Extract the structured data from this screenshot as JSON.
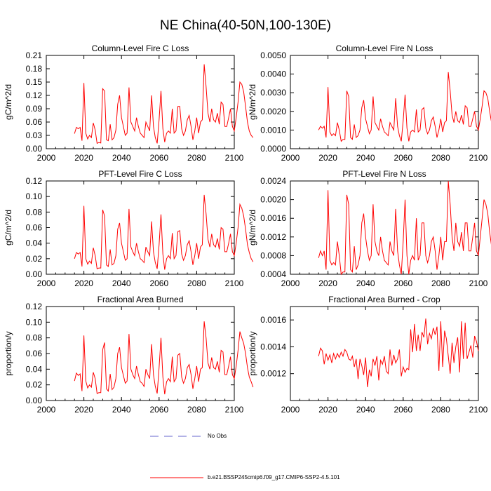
{
  "title": "NE China(40-50N,100-130E)",
  "colors": {
    "series": "#ff0000",
    "obs": "#6666cc",
    "axis": "#000000"
  },
  "legend": {
    "entries": [
      {
        "label": "No Obs",
        "style": "dashed",
        "color": "#6666cc"
      },
      {
        "label": "b.e21.BSSP245cmip6.f09_g17.CMIP6-SSP2-4.5.101",
        "style": "solid",
        "color": "#ff0000"
      }
    ]
  },
  "chart_data": [
    {
      "type": "line",
      "title": "Column-Level Fire C Loss",
      "ylabel": "gC/m^2/d",
      "xlim": [
        2000,
        2100
      ],
      "ylim": [
        0,
        0.21
      ],
      "xticks": [
        "2000",
        "2020",
        "2040",
        "2060",
        "2080",
        "2100"
      ],
      "yticks": [
        "0.00",
        "0.03",
        "0.06",
        "0.09",
        "0.12",
        "0.15",
        "0.18",
        "0.21"
      ],
      "x_start": 2015,
      "values": [
        0.034,
        0.048,
        0.045,
        0.048,
        0.018,
        0.148,
        0.035,
        0.022,
        0.03,
        0.025,
        0.058,
        0.042,
        0.012,
        0.014,
        0.013,
        0.135,
        0.13,
        0.02,
        0.018,
        0.055,
        0.02,
        0.025,
        0.042,
        0.1,
        0.12,
        0.07,
        0.05,
        0.03,
        0.035,
        0.138,
        0.06,
        0.05,
        0.04,
        0.07,
        0.05,
        0.035,
        0.03,
        0.025,
        0.06,
        0.05,
        0.04,
        0.12,
        0.05,
        0.025,
        0.012,
        0.065,
        0.13,
        0.045,
        0.015,
        0.035,
        0.04,
        0.035,
        0.09,
        0.035,
        0.04,
        0.095,
        0.095,
        0.045,
        0.03,
        0.04,
        0.065,
        0.075,
        0.05,
        0.02,
        0.04,
        0.07,
        0.035,
        0.06,
        0.065,
        0.19,
        0.14,
        0.08,
        0.06,
        0.09,
        0.065,
        0.06,
        0.08,
        0.055,
        0.105,
        0.1,
        0.05,
        0.05,
        0.07,
        0.09,
        0.05,
        0.04,
        0.07,
        0.105,
        0.15,
        0.145,
        0.128,
        0.095,
        0.06,
        0.04,
        0.03,
        0.025
      ]
    },
    {
      "type": "line",
      "title": "Column-Level Fire N Loss",
      "ylabel": "gN/m^2/d",
      "xlim": [
        2000,
        2100
      ],
      "ylim": [
        0,
        0.005
      ],
      "xticks": [
        "2000",
        "2020",
        "2040",
        "2060",
        "2080",
        "2100"
      ],
      "yticks": [
        "0.0000",
        "0.0010",
        "0.0020",
        "0.0030",
        "0.0040",
        "0.0050"
      ],
      "x_start": 2015,
      "values": [
        0.001,
        0.0012,
        0.0011,
        0.0012,
        0.0006,
        0.0033,
        0.0009,
        0.0007,
        0.0008,
        0.0007,
        0.0014,
        0.001,
        0.0004,
        0.0005,
        0.0005,
        0.0031,
        0.0028,
        0.0006,
        0.0005,
        0.0013,
        0.0006,
        0.0007,
        0.001,
        0.0022,
        0.0026,
        0.0016,
        0.0012,
        0.0008,
        0.001,
        0.0028,
        0.0014,
        0.0012,
        0.001,
        0.0016,
        0.0012,
        0.0009,
        0.0008,
        0.0007,
        0.0014,
        0.0012,
        0.001,
        0.0027,
        0.0012,
        0.0007,
        0.0004,
        0.0015,
        0.0029,
        0.0011,
        0.0004,
        0.0009,
        0.001,
        0.0009,
        0.0021,
        0.0009,
        0.001,
        0.0021,
        0.0022,
        0.0011,
        0.0008,
        0.001,
        0.0015,
        0.0017,
        0.0012,
        0.0006,
        0.001,
        0.0016,
        0.0009,
        0.0014,
        0.0015,
        0.0041,
        0.0031,
        0.0018,
        0.0014,
        0.002,
        0.0015,
        0.0014,
        0.0018,
        0.0013,
        0.0023,
        0.0022,
        0.0012,
        0.0012,
        0.0016,
        0.002,
        0.0012,
        0.001,
        0.0016,
        0.0023,
        0.0031,
        0.003,
        0.0027,
        0.002,
        0.0014,
        0.0015,
        0.0012,
        0.0008
      ]
    },
    {
      "type": "line",
      "title": "PFT-Level Fire C Loss",
      "ylabel": "gC/m^2/d",
      "xlim": [
        2000,
        2100
      ],
      "ylim": [
        0,
        0.12
      ],
      "xticks": [
        "2000",
        "2020",
        "2040",
        "2060",
        "2080",
        "2100"
      ],
      "yticks": [
        "0.00",
        "0.02",
        "0.04",
        "0.06",
        "0.08",
        "0.10",
        "0.12"
      ],
      "x_start": 2015,
      "values": [
        0.02,
        0.028,
        0.026,
        0.028,
        0.01,
        0.088,
        0.02,
        0.013,
        0.017,
        0.014,
        0.034,
        0.024,
        0.007,
        0.008,
        0.008,
        0.083,
        0.075,
        0.012,
        0.01,
        0.032,
        0.012,
        0.014,
        0.024,
        0.058,
        0.066,
        0.04,
        0.029,
        0.018,
        0.02,
        0.084,
        0.035,
        0.029,
        0.024,
        0.04,
        0.029,
        0.02,
        0.018,
        0.015,
        0.035,
        0.029,
        0.024,
        0.068,
        0.029,
        0.015,
        0.007,
        0.038,
        0.077,
        0.026,
        0.006,
        0.02,
        0.024,
        0.02,
        0.053,
        0.02,
        0.024,
        0.055,
        0.056,
        0.026,
        0.018,
        0.024,
        0.038,
        0.043,
        0.029,
        0.012,
        0.024,
        0.04,
        0.02,
        0.035,
        0.038,
        0.102,
        0.078,
        0.045,
        0.035,
        0.052,
        0.038,
        0.035,
        0.046,
        0.032,
        0.06,
        0.058,
        0.029,
        0.029,
        0.04,
        0.052,
        0.029,
        0.024,
        0.04,
        0.06,
        0.09,
        0.085,
        0.075,
        0.058,
        0.038,
        0.028,
        0.02,
        0.016
      ]
    },
    {
      "type": "line",
      "title": "PFT-Level Fire N Loss",
      "ylabel": "gN/m^2/d",
      "xlim": [
        2000,
        2100
      ],
      "ylim": [
        0.0004,
        0.0024
      ],
      "xticks": [
        "2000",
        "2020",
        "2040",
        "2060",
        "2080",
        "2100"
      ],
      "yticks": [
        "0.0004",
        "0.0008",
        "0.0012",
        "0.0016",
        "0.0020",
        "0.0024"
      ],
      "x_start": 2015,
      "values": [
        0.00075,
        0.0009,
        0.0008,
        0.0009,
        0.0005,
        0.0022,
        0.0007,
        0.0006,
        0.00065,
        0.0006,
        0.0011,
        0.0008,
        0.0004,
        0.00045,
        0.00045,
        0.0021,
        0.0019,
        0.0005,
        0.00045,
        0.001,
        0.0005,
        0.0006,
        0.0008,
        0.0015,
        0.0017,
        0.0012,
        0.0009,
        0.0007,
        0.0008,
        0.0019,
        0.0011,
        0.0009,
        0.0008,
        0.0012,
        0.0009,
        0.0007,
        0.00065,
        0.0006,
        0.0011,
        0.0009,
        0.0008,
        0.0018,
        0.0009,
        0.0006,
        0.0004,
        0.0011,
        0.002,
        0.0008,
        0.0004,
        0.0007,
        0.0008,
        0.0007,
        0.0016,
        0.0007,
        0.0008,
        0.0015,
        0.0015,
        0.0008,
        0.00065,
        0.0008,
        0.0011,
        0.0012,
        0.0009,
        0.0005,
        0.0008,
        0.0012,
        0.0007,
        0.0011,
        0.0011,
        0.0024,
        0.0019,
        0.0012,
        0.0009,
        0.0015,
        0.0011,
        0.001,
        0.0013,
        0.0009,
        0.0015,
        0.0015,
        0.0009,
        0.0009,
        0.0012,
        0.0015,
        0.0009,
        0.0008,
        0.0012,
        0.0016,
        0.002,
        0.0019,
        0.0017,
        0.0013,
        0.001,
        0.0012,
        0.0009,
        0.0006
      ]
    },
    {
      "type": "line",
      "title": "Fractional Area Burned",
      "ylabel": "proportion/y",
      "xlim": [
        2000,
        2100
      ],
      "ylim": [
        0,
        0.12
      ],
      "xticks": [
        "2000",
        "2020",
        "2040",
        "2060",
        "2080",
        "2100"
      ],
      "yticks": [
        "0.00",
        "0.02",
        "0.04",
        "0.06",
        "0.08",
        "0.10",
        "0.12"
      ],
      "x_start": 2015,
      "values": [
        0.025,
        0.035,
        0.032,
        0.034,
        0.012,
        0.083,
        0.025,
        0.016,
        0.02,
        0.017,
        0.036,
        0.028,
        0.009,
        0.01,
        0.01,
        0.065,
        0.074,
        0.015,
        0.012,
        0.034,
        0.014,
        0.017,
        0.028,
        0.06,
        0.068,
        0.042,
        0.032,
        0.022,
        0.025,
        0.085,
        0.04,
        0.033,
        0.028,
        0.044,
        0.033,
        0.024,
        0.022,
        0.018,
        0.04,
        0.033,
        0.028,
        0.072,
        0.033,
        0.018,
        0.009,
        0.042,
        0.08,
        0.03,
        0.008,
        0.024,
        0.028,
        0.024,
        0.056,
        0.024,
        0.028,
        0.058,
        0.06,
        0.03,
        0.022,
        0.028,
        0.042,
        0.046,
        0.033,
        0.015,
        0.028,
        0.044,
        0.024,
        0.04,
        0.042,
        0.101,
        0.08,
        0.048,
        0.04,
        0.055,
        0.042,
        0.04,
        0.05,
        0.036,
        0.064,
        0.062,
        0.033,
        0.033,
        0.044,
        0.056,
        0.033,
        0.028,
        0.044,
        0.064,
        0.088,
        0.08,
        0.073,
        0.06,
        0.042,
        0.03,
        0.024,
        0.017
      ]
    },
    {
      "type": "line",
      "title": "Fractional Area Burned - Crop",
      "ylabel": "proportion/y",
      "xlim": [
        2000,
        2100
      ],
      "ylim": [
        0.001,
        0.0017
      ],
      "xticks": [
        "2000",
        "2020",
        "2040",
        "2060",
        "2080",
        "2100"
      ],
      "yticks": [
        "0.0012",
        "0.0014",
        "0.0016"
      ],
      "x_start": 2015,
      "values": [
        0.00133,
        0.00139,
        0.00137,
        0.00127,
        0.00135,
        0.0013,
        0.00134,
        0.00128,
        0.00135,
        0.00131,
        0.00135,
        0.00132,
        0.00136,
        0.00133,
        0.00138,
        0.00136,
        0.00131,
        0.0013,
        0.00133,
        0.00125,
        0.00131,
        0.00116,
        0.00131,
        0.00126,
        0.00119,
        0.00132,
        0.0011,
        0.00123,
        0.00118,
        0.00131,
        0.00126,
        0.00133,
        0.00115,
        0.0013,
        0.00127,
        0.00133,
        0.00122,
        0.0012,
        0.00138,
        0.00126,
        0.00134,
        0.00128,
        0.00131,
        0.00138,
        0.00118,
        0.00125,
        0.00121,
        0.00124,
        0.00123,
        0.00153,
        0.00136,
        0.00157,
        0.00137,
        0.00149,
        0.00137,
        0.00151,
        0.00147,
        0.00161,
        0.00142,
        0.0015,
        0.00146,
        0.00154,
        0.00149,
        0.00155,
        0.00122,
        0.00159,
        0.00125,
        0.00152,
        0.00146,
        0.00133,
        0.0012,
        0.00143,
        0.00128,
        0.0014,
        0.00147,
        0.00121,
        0.00159,
        0.00131,
        0.00158,
        0.00131,
        0.00136,
        0.00141,
        0.00132,
        0.00148,
        0.00144,
        0.00137
      ]
    }
  ]
}
